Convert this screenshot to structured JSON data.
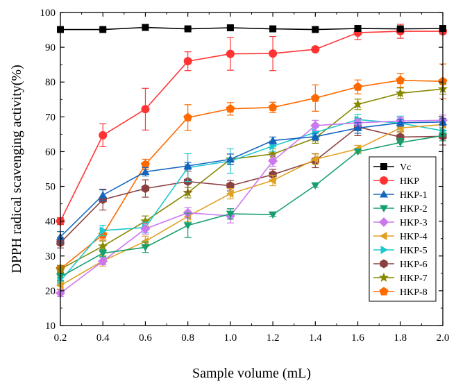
{
  "chart_data": {
    "type": "line",
    "title": "",
    "xlabel": "Sample volume (mL)",
    "ylabel": "DPPH radical scavenging activity(%)",
    "xlim": [
      0.2,
      2.0
    ],
    "ylim": [
      10,
      100
    ],
    "x": [
      0.2,
      0.4,
      0.6,
      0.8,
      1.0,
      1.2,
      1.4,
      1.6,
      1.8,
      2.0
    ],
    "x_tick_labels": [
      "0.2",
      "0.4",
      "0.6",
      "0.8",
      "1.0",
      "1.2",
      "1.4",
      "1.6",
      "1.8",
      "2.0"
    ],
    "y_tick_labels": [
      "10",
      "20",
      "30",
      "40",
      "50",
      "60",
      "70",
      "80",
      "90",
      "100"
    ],
    "legend_position": "right",
    "series": [
      {
        "name": "Vc",
        "color": "#000000",
        "marker": "square",
        "values": [
          95.1,
          95.1,
          95.7,
          95.3,
          95.6,
          95.3,
          95.1,
          95.4,
          95.3,
          95.4
        ],
        "errors": [
          0.3,
          0.3,
          0.3,
          0.3,
          0.3,
          0.3,
          0.3,
          0.4,
          0.3,
          0.3
        ]
      },
      {
        "name": "HKP",
        "color": "#ff3333",
        "marker": "circle",
        "values": [
          40.0,
          64.7,
          72.2,
          86.0,
          88.1,
          88.2,
          89.4,
          94.2,
          94.6,
          94.6
        ],
        "errors": [
          1.0,
          3.3,
          6.0,
          2.7,
          4.7,
          4.9,
          0.7,
          2.0,
          2.0,
          0.8
        ]
      },
      {
        "name": "HKP-1",
        "color": "#1565c0",
        "marker": "triangle-up",
        "values": [
          35.5,
          47.5,
          54.2,
          55.9,
          57.8,
          63.2,
          64.3,
          66.8,
          68.3,
          68.5
        ],
        "errors": [
          1.5,
          1.5,
          1.2,
          1.0,
          1.5,
          1.0,
          1.0,
          1.5,
          1.0,
          1.0
        ]
      },
      {
        "name": "HKP-2",
        "color": "#17a06e",
        "marker": "triangle-down",
        "values": [
          24.0,
          30.8,
          32.5,
          38.8,
          42.1,
          41.9,
          50.3,
          60.0,
          62.6,
          64.6
        ],
        "errors": [
          1.0,
          1.0,
          1.5,
          3.5,
          1.5,
          0.5,
          0.5,
          0.5,
          1.2,
          1.5
        ]
      },
      {
        "name": "HKP-3",
        "color": "#cc77ee",
        "marker": "diamond",
        "values": [
          19.3,
          28.5,
          37.8,
          42.4,
          41.5,
          57.3,
          67.5,
          68.3,
          68.8,
          69.0
        ],
        "errors": [
          1.0,
          1.0,
          1.5,
          1.5,
          2.0,
          1.5,
          1.5,
          1.0,
          1.0,
          1.5
        ]
      },
      {
        "name": "HKP-4",
        "color": "#e0a020",
        "marker": "triangle-left",
        "values": [
          21.5,
          28.6,
          34.2,
          41.4,
          47.9,
          51.7,
          57.8,
          60.8,
          66.8,
          67.8
        ],
        "errors": [
          1.0,
          1.5,
          1.5,
          1.5,
          1.5,
          1.5,
          1.5,
          1.0,
          1.2,
          1.0
        ]
      },
      {
        "name": "HKP-5",
        "color": "#1ec8d0",
        "marker": "triangle-right",
        "values": [
          22.8,
          37.3,
          38.2,
          55.4,
          57.3,
          61.6,
          65.5,
          69.2,
          68.2,
          66.0
        ],
        "errors": [
          1.0,
          1.5,
          1.5,
          4.0,
          3.5,
          1.5,
          1.5,
          1.5,
          2.0,
          1.5
        ]
      },
      {
        "name": "HKP-6",
        "color": "#8b4040",
        "marker": "hexagon",
        "values": [
          33.8,
          46.2,
          49.4,
          51.4,
          50.2,
          53.4,
          57.4,
          67.1,
          64.2,
          64.4
        ],
        "errors": [
          1.5,
          3.0,
          2.5,
          3.0,
          1.5,
          1.5,
          2.0,
          2.5,
          1.5,
          2.5
        ]
      },
      {
        "name": "HKP-7",
        "color": "#888800",
        "marker": "star",
        "values": [
          26.2,
          32.8,
          40.0,
          48.2,
          57.8,
          59.3,
          63.9,
          73.6,
          76.8,
          78.0
        ],
        "errors": [
          1.0,
          1.5,
          1.5,
          1.5,
          1.5,
          1.5,
          1.5,
          1.5,
          1.5,
          1.5
        ]
      },
      {
        "name": "HKP-8",
        "color": "#ff6a00",
        "marker": "pentagon",
        "values": [
          26.3,
          36.1,
          56.3,
          69.8,
          72.3,
          72.7,
          75.4,
          78.6,
          80.5,
          80.2
        ],
        "errors": [
          1.0,
          1.5,
          1.5,
          3.7,
          1.8,
          1.5,
          3.8,
          2.0,
          2.0,
          5.0
        ]
      }
    ]
  }
}
